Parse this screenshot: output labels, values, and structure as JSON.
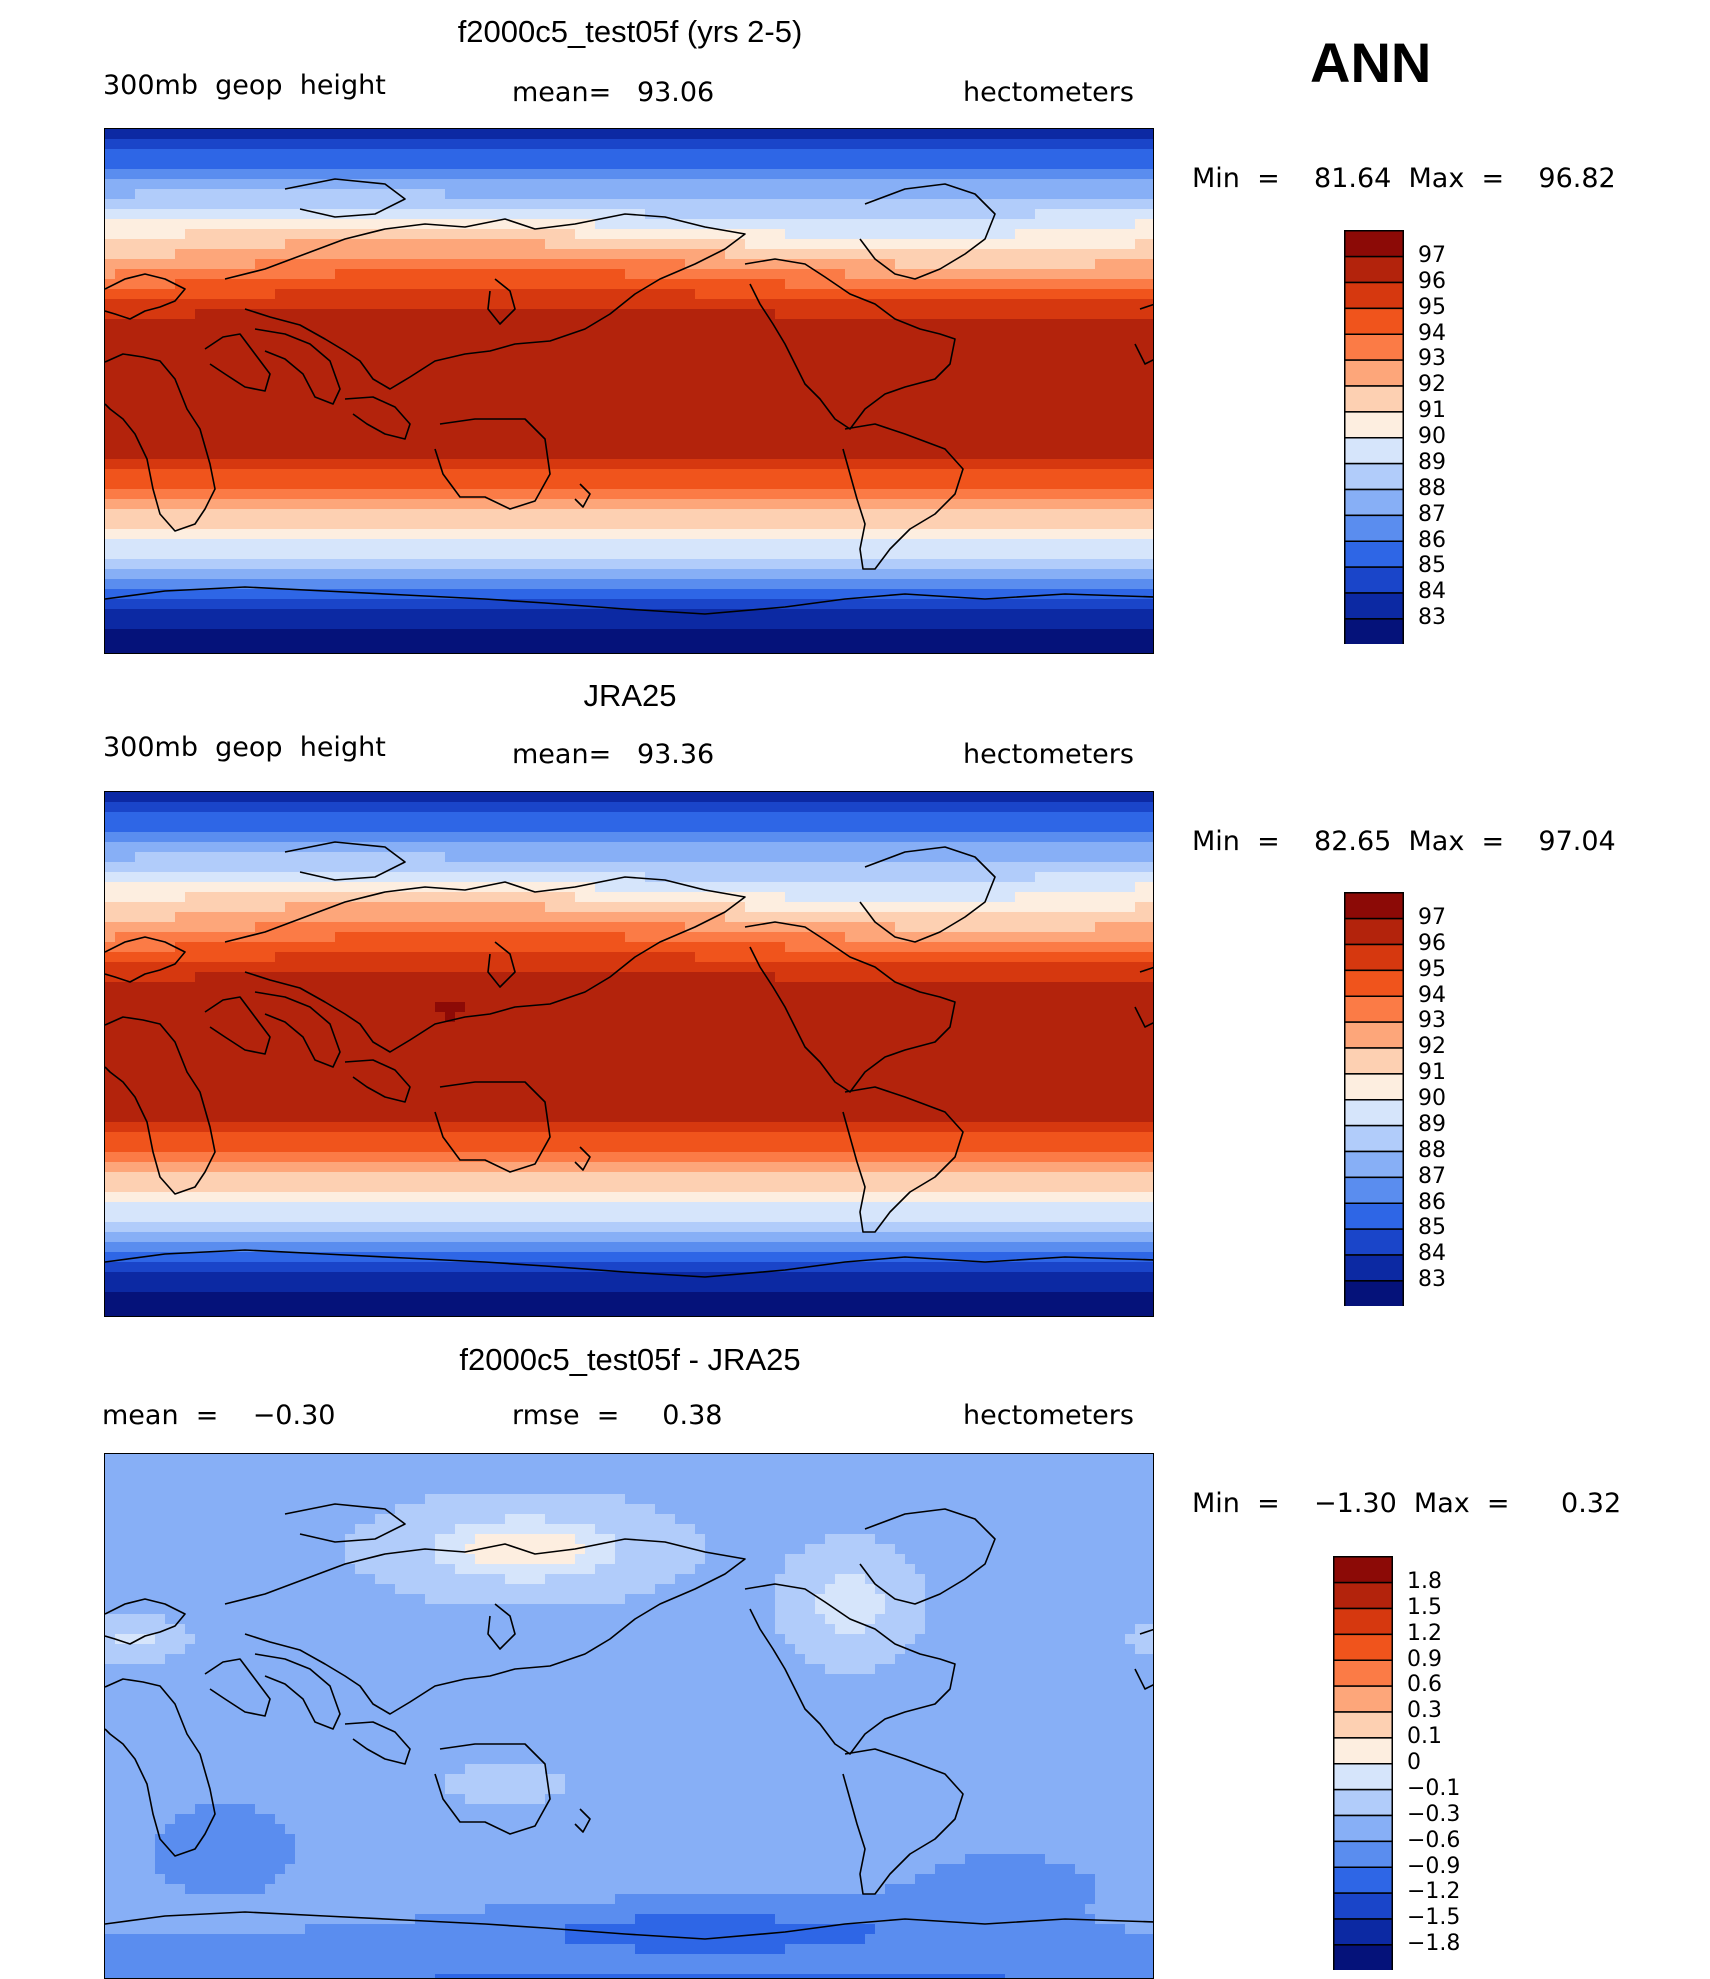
{
  "season": "ANN",
  "panels": [
    {
      "id": "model",
      "title": "f2000c5_test05f (yrs 2-5)",
      "left_label": "300mb  geop  height",
      "center_label": "mean=   93.06",
      "right_label": "hectometers",
      "min_max": "Min  =    81.64  Max  =    96.82",
      "colorbar": {
        "levels": [
          "97",
          "96",
          "95",
          "94",
          "93",
          "92",
          "91",
          "90",
          "89",
          "88",
          "87",
          "86",
          "85",
          "84",
          "83"
        ],
        "colors": [
          "#8c0a06",
          "#b3230c",
          "#d6380f",
          "#f0541c",
          "#fb7b46",
          "#fda67a",
          "#fdd0b2",
          "#fdeee0",
          "#d6e5fb",
          "#b1ccfa",
          "#87aff6",
          "#5a8def",
          "#2e66e6",
          "#1a45c9",
          "#0c29a3",
          "#05127a"
        ]
      },
      "chart_data": {
        "type": "heatmap",
        "title": "f2000c5_test05f (yrs 2-5)",
        "variable": "300mb geop height",
        "units": "hectometers",
        "mean": 93.06,
        "min": 81.64,
        "max": 96.82,
        "contour_levels": [
          83,
          84,
          85,
          86,
          87,
          88,
          89,
          90,
          91,
          92,
          93,
          94,
          95,
          96,
          97
        ]
      }
    },
    {
      "id": "obs",
      "title": "JRA25",
      "left_label": "300mb  geop  height",
      "center_label": "mean=   93.36",
      "right_label": "hectometers",
      "min_max": "Min  =    82.65  Max  =    97.04",
      "colorbar": {
        "levels": [
          "97",
          "96",
          "95",
          "94",
          "93",
          "92",
          "91",
          "90",
          "89",
          "88",
          "87",
          "86",
          "85",
          "84",
          "83"
        ],
        "colors": [
          "#8c0a06",
          "#b3230c",
          "#d6380f",
          "#f0541c",
          "#fb7b46",
          "#fda67a",
          "#fdd0b2",
          "#fdeee0",
          "#d6e5fb",
          "#b1ccfa",
          "#87aff6",
          "#5a8def",
          "#2e66e6",
          "#1a45c9",
          "#0c29a3",
          "#05127a"
        ]
      },
      "chart_data": {
        "type": "heatmap",
        "title": "JRA25",
        "variable": "300mb geop height",
        "units": "hectometers",
        "mean": 93.36,
        "min": 82.65,
        "max": 97.04,
        "contour_levels": [
          83,
          84,
          85,
          86,
          87,
          88,
          89,
          90,
          91,
          92,
          93,
          94,
          95,
          96,
          97
        ]
      }
    },
    {
      "id": "diff",
      "title": "f2000c5_test05f - JRA25",
      "left_label": "mean  =    −0.30",
      "center_label": "rmse  =     0.38",
      "right_label": "hectometers",
      "min_max": "Min  =    −1.30  Max  =      0.32",
      "colorbar": {
        "levels": [
          "1.8",
          "1.5",
          "1.2",
          "0.9",
          "0.6",
          "0.3",
          "0.1",
          "0",
          "−0.1",
          "−0.3",
          "−0.6",
          "−0.9",
          "−1.2",
          "−1.5",
          "−1.8"
        ],
        "colors": [
          "#8c0a06",
          "#b3230c",
          "#d6380f",
          "#f0541c",
          "#fb7b46",
          "#fda67a",
          "#fdd0b2",
          "#fdeee0",
          "#d6e5fb",
          "#b1ccfa",
          "#87aff6",
          "#5a8def",
          "#2e66e6",
          "#1a45c9",
          "#0c29a3",
          "#05127a"
        ]
      },
      "chart_data": {
        "type": "heatmap",
        "title": "f2000c5_test05f - JRA25",
        "units": "hectometers",
        "mean": -0.3,
        "rmse": 0.38,
        "min": -1.3,
        "max": 0.32,
        "contour_levels": [
          -1.8,
          -1.5,
          -1.2,
          -0.9,
          -0.6,
          -0.3,
          -0.1,
          0,
          0.1,
          0.3,
          0.6,
          0.9,
          1.2,
          1.5,
          1.8
        ]
      }
    }
  ]
}
